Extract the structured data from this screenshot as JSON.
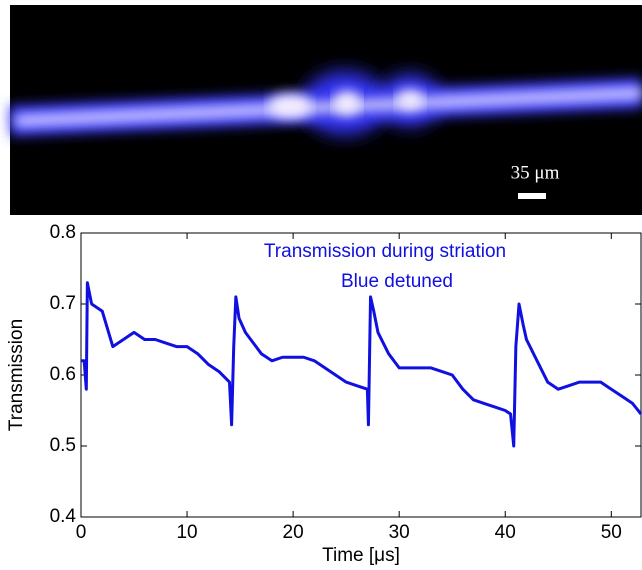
{
  "image": {
    "scale_bar_label": "35 μm"
  },
  "chart_data": {
    "type": "line",
    "annotations": [
      "Transmission during striation",
      "Blue detuned"
    ],
    "xlabel": "Time [μs]",
    "ylabel": "Transmission",
    "xlim": [
      0,
      52.8
    ],
    "ylim": [
      0.4,
      0.8
    ],
    "xticks": [
      0,
      10,
      20,
      30,
      40,
      50
    ],
    "yticks": [
      0.4,
      0.5,
      0.6,
      0.7,
      0.8
    ],
    "series": [
      {
        "color": "#1010e0",
        "x": [
          0,
          0.3,
          0.5,
          0.6,
          1,
          2,
          3,
          4,
          5,
          6,
          7,
          8,
          9,
          10,
          11,
          12,
          13,
          14,
          14.2,
          14.4,
          14.6,
          14.9,
          15.5,
          16,
          17,
          18,
          19,
          20,
          21,
          22,
          23,
          24,
          25,
          26,
          27,
          27.1,
          27.3,
          27.6,
          28,
          29,
          30,
          31,
          32,
          33,
          34,
          35,
          36,
          37,
          38,
          39,
          40,
          40.5,
          40.8,
          41,
          41.3,
          41.7,
          42,
          43,
          44,
          45,
          46,
          47,
          48,
          49,
          50,
          51,
          52,
          52.8
        ],
        "values": [
          0.62,
          0.62,
          0.58,
          0.73,
          0.7,
          0.69,
          0.64,
          0.65,
          0.66,
          0.65,
          0.65,
          0.645,
          0.64,
          0.64,
          0.63,
          0.615,
          0.605,
          0.59,
          0.53,
          0.64,
          0.71,
          0.68,
          0.66,
          0.65,
          0.63,
          0.62,
          0.625,
          0.625,
          0.625,
          0.62,
          0.61,
          0.6,
          0.59,
          0.585,
          0.58,
          0.53,
          0.71,
          0.69,
          0.66,
          0.63,
          0.61,
          0.61,
          0.61,
          0.61,
          0.605,
          0.6,
          0.58,
          0.565,
          0.56,
          0.555,
          0.55,
          0.545,
          0.5,
          0.64,
          0.7,
          0.67,
          0.65,
          0.62,
          0.59,
          0.58,
          0.585,
          0.59,
          0.59,
          0.59,
          0.58,
          0.57,
          0.56,
          0.545
        ]
      }
    ]
  }
}
